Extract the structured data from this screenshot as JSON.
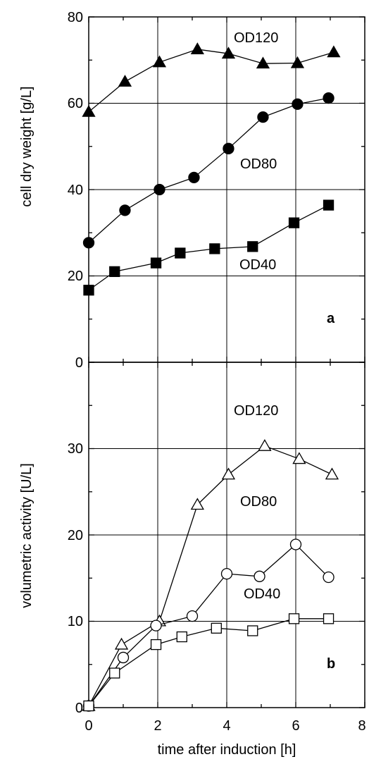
{
  "chart_data": [
    {
      "panel": "a",
      "type": "line",
      "ylabel": "cell dry weight [g/L]",
      "xlim": [
        0,
        8
      ],
      "ylim": [
        0,
        80
      ],
      "x_ticks": [
        0,
        2,
        4,
        6,
        8
      ],
      "y_ticks": [
        0,
        20,
        40,
        60,
        80
      ],
      "grid": true,
      "series": [
        {
          "name": "OD120",
          "marker": "triangle",
          "filled": true,
          "x": [
            0,
            1.05,
            2.05,
            3.15,
            4.05,
            5.05,
            6.05,
            7.1
          ],
          "y": [
            58,
            65,
            69.5,
            72.5,
            71.5,
            69.2,
            69.3,
            71.8
          ]
        },
        {
          "name": "OD80",
          "marker": "circle",
          "filled": true,
          "x": [
            0,
            1.05,
            2.05,
            3.05,
            4.05,
            5.05,
            6.05,
            6.95
          ],
          "y": [
            27.7,
            35.2,
            40,
            42.8,
            49.5,
            56.8,
            59.8,
            61.2
          ]
        },
        {
          "name": "OD40",
          "marker": "square",
          "filled": true,
          "x": [
            0,
            0.75,
            1.95,
            2.65,
            3.65,
            4.75,
            5.95,
            6.95
          ],
          "y": [
            16.7,
            21,
            23,
            25.3,
            26.3,
            26.8,
            32.3,
            36.4
          ]
        }
      ]
    },
    {
      "panel": "b",
      "type": "line",
      "xlabel": "time after induction [h]",
      "ylabel": "volumetric activity [U/L]",
      "xlim": [
        0,
        8
      ],
      "ylim": [
        0,
        40
      ],
      "x_ticks": [
        0,
        2,
        4,
        6,
        8
      ],
      "y_ticks": [
        0,
        10,
        20,
        30
      ],
      "grid": true,
      "series": [
        {
          "name": "OD120",
          "marker": "triangle",
          "filled": false,
          "x": [
            0,
            0.95,
            2.05,
            3.15,
            4.05,
            5.1,
            6.1,
            7.05
          ],
          "y": [
            0.2,
            7.3,
            10,
            23.5,
            27,
            30.3,
            28.8,
            27
          ]
        },
        {
          "name": "OD80",
          "marker": "circle",
          "filled": false,
          "x": [
            0,
            1.0,
            1.95,
            3.0,
            4.0,
            4.95,
            6.0,
            6.95
          ],
          "y": [
            0.2,
            5.8,
            9.5,
            10.6,
            15.5,
            15.2,
            18.9,
            15.1
          ]
        },
        {
          "name": "OD40",
          "marker": "square",
          "filled": false,
          "x": [
            0,
            0.75,
            1.95,
            2.7,
            3.7,
            4.75,
            5.95,
            6.95
          ],
          "y": [
            0.2,
            4,
            7.3,
            8.2,
            9.2,
            8.9,
            10.3,
            10.3
          ]
        }
      ]
    }
  ],
  "panels": {
    "a": {
      "letter": "a",
      "label_120": "OD120",
      "label_80": "OD80",
      "label_40": "OD40"
    },
    "b": {
      "letter": "b",
      "label_120": "OD120",
      "label_80": "OD80",
      "label_40": "OD40"
    }
  },
  "x_tick_labels": [
    "0",
    "2",
    "4",
    "6",
    "8"
  ],
  "y_tick_labels_a": [
    "0",
    "20",
    "40",
    "60",
    "80"
  ],
  "y_tick_labels_b": [
    "0",
    "10",
    "20",
    "30"
  ],
  "ylabel_a": "cell dry weight [g/L]",
  "ylabel_b": "volumetric activity [U/L]",
  "xlabel": "time after induction [h]"
}
